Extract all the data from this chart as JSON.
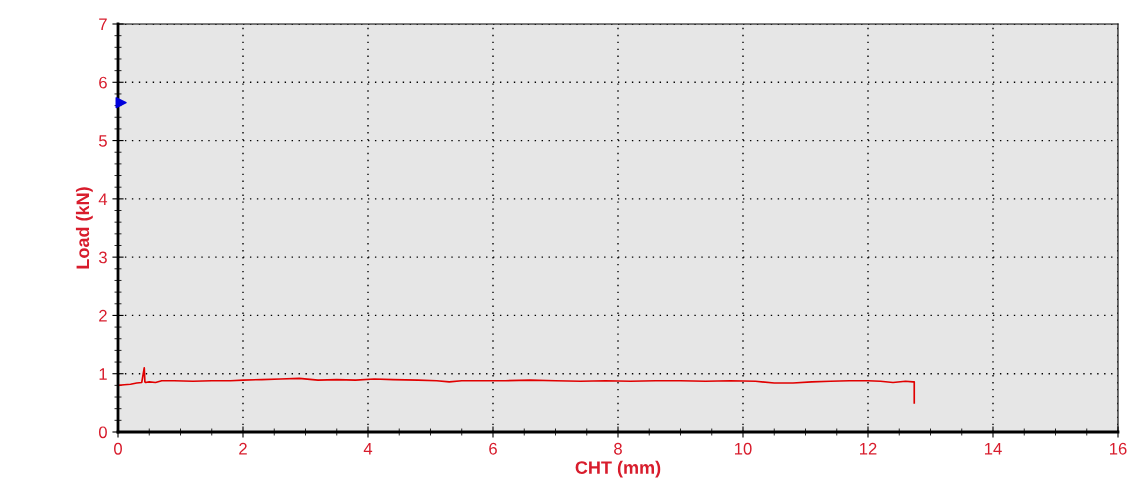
{
  "chart_data": {
    "type": "line",
    "xlabel": "CHT (mm)",
    "ylabel": "Load (kN)",
    "xlim": [
      0,
      16
    ],
    "xticks": [
      0,
      2,
      4,
      6,
      8,
      10,
      12,
      14,
      16
    ],
    "ylim": [
      0,
      7
    ],
    "yticks": [
      0,
      1,
      2,
      3,
      4,
      5,
      6,
      7
    ],
    "grid": true,
    "line_style": "solid",
    "series": [
      {
        "color": "#e00000",
        "marker": "none",
        "x": [
          0,
          0.1,
          0.2,
          0.3,
          0.38,
          0.42,
          0.43,
          0.44,
          0.5,
          0.6,
          0.7,
          0.9,
          1.2,
          1.5,
          1.8,
          2.0,
          2.3,
          2.6,
          2.9,
          3.2,
          3.5,
          3.8,
          4.1,
          4.4,
          4.8,
          5.1,
          5.3,
          5.5,
          5.8,
          6.2,
          6.6,
          7.0,
          7.4,
          7.8,
          8.2,
          8.6,
          9.0,
          9.4,
          9.8,
          10.2,
          10.5,
          10.8,
          11.1,
          11.4,
          11.7,
          12.0,
          12.2,
          12.4,
          12.6,
          12.72,
          12.74,
          12.74
        ],
        "values": [
          0.8,
          0.81,
          0.82,
          0.84,
          0.85,
          1.1,
          0.86,
          0.85,
          0.86,
          0.85,
          0.88,
          0.88,
          0.87,
          0.88,
          0.88,
          0.89,
          0.9,
          0.91,
          0.92,
          0.89,
          0.9,
          0.89,
          0.91,
          0.9,
          0.89,
          0.88,
          0.86,
          0.88,
          0.88,
          0.88,
          0.89,
          0.88,
          0.87,
          0.88,
          0.87,
          0.88,
          0.88,
          0.87,
          0.88,
          0.87,
          0.84,
          0.84,
          0.86,
          0.87,
          0.88,
          0.88,
          0.87,
          0.85,
          0.87,
          0.86,
          0.86,
          0.5
        ]
      },
      {
        "type": "scatter",
        "color": "#0000dd",
        "marker": "triangle",
        "x": [
          0.05
        ],
        "values": [
          5.65
        ]
      }
    ]
  }
}
